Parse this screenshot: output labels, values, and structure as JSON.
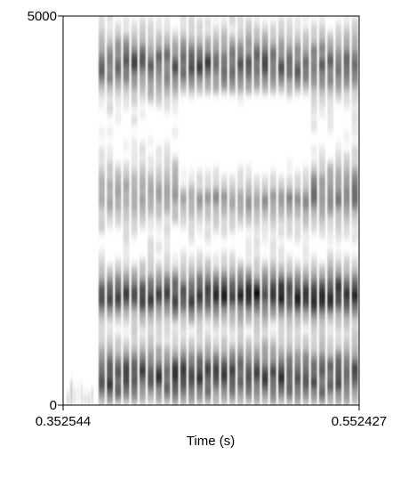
{
  "chart_data": {
    "type": "heatmap",
    "title": "",
    "xlabel": "Time (s)",
    "ylabel": "",
    "xlim": [
      0.352544,
      0.552427
    ],
    "ylim": [
      0,
      5000
    ],
    "x_tick_labels": [
      "0.352544",
      "0.552427"
    ],
    "y_tick_labels": [
      "0",
      "5000"
    ],
    "colormap": "grayscale (white = low energy, black = high energy)",
    "grid": false,
    "voicing_onset_time_s": 0.376,
    "formant_bands_hz": [
      {
        "center": 1400,
        "intensity": 0.95
      },
      {
        "center": 2700,
        "intensity": 0.45
      },
      {
        "center": 4350,
        "intensity": 0.7
      },
      {
        "center": 350,
        "intensity": 0.75
      }
    ],
    "glottal_pulse_count": 32
  },
  "colors": {
    "axis": "#000000",
    "background": "#ffffff",
    "ink": "#000000"
  }
}
